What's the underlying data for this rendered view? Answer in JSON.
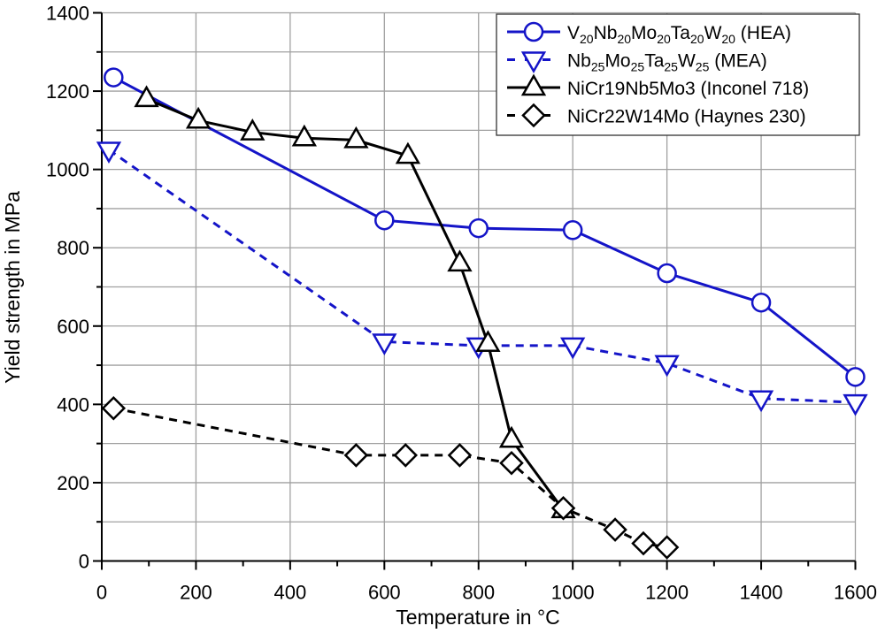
{
  "chart_data": {
    "type": "line",
    "xlabel": "Temperature in °C",
    "ylabel": "Yield strength in MPa",
    "xlim": [
      0,
      1600
    ],
    "ylim": [
      0,
      1400
    ],
    "xticks": [
      "0",
      "200",
      "400",
      "600",
      "800",
      "1000",
      "1200",
      "1400",
      "1600"
    ],
    "yticks": [
      "0",
      "200",
      "400",
      "600",
      "800",
      "1000",
      "1200",
      "1400"
    ],
    "grid": true,
    "legend_position": "top-right",
    "series": [
      {
        "name": "V20Nb20Mo20Ta20W20 (HEA)",
        "label_parts": [
          {
            "t": "V"
          },
          {
            "s": "20"
          },
          {
            "t": "Nb"
          },
          {
            "s": "20"
          },
          {
            "t": "Mo"
          },
          {
            "s": "20"
          },
          {
            "t": "Ta"
          },
          {
            "s": "20"
          },
          {
            "t": "W"
          },
          {
            "s": "20"
          },
          {
            "t": " (HEA)"
          }
        ],
        "color": "#1414c8",
        "dash": "solid",
        "marker": "circle",
        "x": [
          25,
          600,
          800,
          1000,
          1200,
          1400,
          1600
        ],
        "y": [
          1235,
          870,
          850,
          845,
          735,
          660,
          470
        ]
      },
      {
        "name": "Nb25Mo25Ta25W25 (MEA)",
        "label_parts": [
          {
            "t": "Nb"
          },
          {
            "s": "25"
          },
          {
            "t": "Mo"
          },
          {
            "s": "25"
          },
          {
            "t": "Ta"
          },
          {
            "s": "25"
          },
          {
            "t": "W"
          },
          {
            "s": "25"
          },
          {
            "t": " (MEA)"
          }
        ],
        "color": "#1414c8",
        "dash": "dashed",
        "marker": "triangle-down",
        "x": [
          15,
          600,
          800,
          1000,
          1200,
          1400,
          1600
        ],
        "y": [
          1050,
          560,
          550,
          550,
          505,
          415,
          405
        ]
      },
      {
        "name": "NiCr19Nb5Mo3 (Inconel 718)",
        "label_parts": [
          {
            "t": "NiCr19Nb5Mo3 (Inconel 718)"
          }
        ],
        "color": "#000000",
        "dash": "solid",
        "marker": "triangle-up",
        "x": [
          95,
          205,
          320,
          430,
          540,
          650,
          760,
          820,
          870,
          980
        ],
        "y": [
          1180,
          1125,
          1095,
          1080,
          1075,
          1035,
          760,
          555,
          310,
          130
        ]
      },
      {
        "name": "NiCr22W14Mo (Haynes 230)",
        "label_parts": [
          {
            "t": "NiCr22W14Mo (Haynes 230)"
          }
        ],
        "color": "#000000",
        "dash": "dashed",
        "marker": "diamond",
        "x": [
          25,
          540,
          645,
          760,
          870,
          980,
          1090,
          1150,
          1200
        ],
        "y": [
          390,
          270,
          270,
          270,
          250,
          135,
          80,
          45,
          35
        ]
      }
    ]
  }
}
